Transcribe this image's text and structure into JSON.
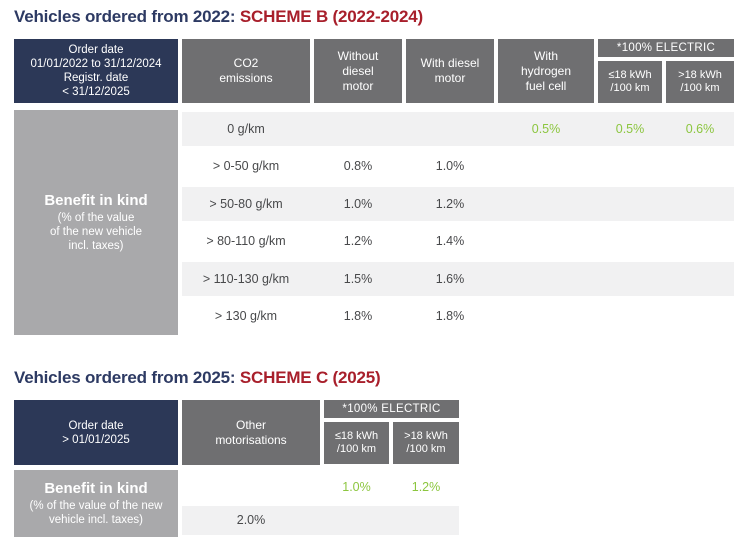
{
  "colors": {
    "title_navy": "#2d3a63",
    "title_red": "#a81f2b",
    "header_navy": "#2c3857",
    "header_gray": "#6f6f71",
    "side_gray": "#a9a9ab",
    "row_stripe": "#f1f1f2",
    "value_green": "#8cc63f",
    "body_text": "#48494b"
  },
  "scheme_b": {
    "title_prefix": "Vehicles ordered from 2022:",
    "title_scheme": "SCHEME B (2022-2024)",
    "header": {
      "order_date_lines": [
        "Order date",
        "01/01/2022 to 31/12/2024",
        "Registr. date",
        "< 31/12/2025"
      ],
      "co2_lines": [
        "CO2",
        "emissions"
      ],
      "without_diesel_lines": [
        "Without",
        "diesel",
        "motor"
      ],
      "with_diesel_lines": [
        "With diesel",
        "motor"
      ],
      "hydrogen_lines": [
        "With",
        "hydrogen",
        "fuel cell"
      ],
      "electric_group": "*100% ELECTRIC",
      "electric_low_lines": [
        "≤18 kWh",
        "/100 km"
      ],
      "electric_high_lines": [
        ">18 kWh",
        "/100 km"
      ]
    },
    "side": {
      "title": "Benefit in kind",
      "subtitle_lines": [
        "(% of the value",
        "of the new vehicle",
        "incl. taxes)"
      ]
    },
    "rows": [
      {
        "label": "0 g/km",
        "without_diesel": "",
        "with_diesel": "",
        "hydrogen": "0.5%",
        "electric_low": "0.5%",
        "electric_high": "0.6%"
      },
      {
        "label": "> 0-50 g/km",
        "without_diesel": "0.8%",
        "with_diesel": "1.0%",
        "hydrogen": "",
        "electric_low": "",
        "electric_high": ""
      },
      {
        "label": "> 50-80 g/km",
        "without_diesel": "1.0%",
        "with_diesel": "1.2%",
        "hydrogen": "",
        "electric_low": "",
        "electric_high": ""
      },
      {
        "label": "> 80-110 g/km",
        "without_diesel": "1.2%",
        "with_diesel": "1.4%",
        "hydrogen": "",
        "electric_low": "",
        "electric_high": ""
      },
      {
        "label": "> 110-130 g/km",
        "without_diesel": "1.5%",
        "with_diesel": "1.6%",
        "hydrogen": "",
        "electric_low": "",
        "electric_high": ""
      },
      {
        "label": "> 130 g/km",
        "without_diesel": "1.8%",
        "with_diesel": "1.8%",
        "hydrogen": "",
        "electric_low": "",
        "electric_high": ""
      }
    ]
  },
  "scheme_c": {
    "title_prefix": "Vehicles ordered from 2025:",
    "title_scheme": "SCHEME C (2025)",
    "header": {
      "order_date_lines": [
        "Order date",
        "> 01/01/2025"
      ],
      "other_lines": [
        "Other",
        "motorisations"
      ],
      "electric_group": "*100% ELECTRIC",
      "electric_low_lines": [
        "≤18 kWh",
        "/100 km"
      ],
      "electric_high_lines": [
        ">18 kWh",
        "/100 km"
      ]
    },
    "side": {
      "title": "Benefit in kind",
      "subtitle_lines": [
        "(% of the value of the new",
        "vehicle incl. taxes)"
      ]
    },
    "rows": [
      {
        "other": "",
        "electric_low": "1.0%",
        "electric_high": "1.2%"
      },
      {
        "other": "2.0%",
        "electric_low": "",
        "electric_high": ""
      }
    ]
  }
}
